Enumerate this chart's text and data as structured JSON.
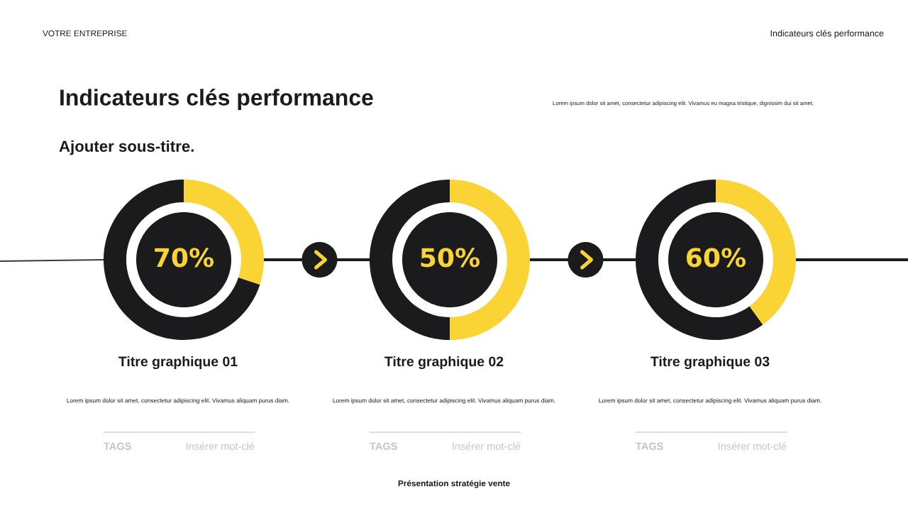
{
  "chart_data": [
    {
      "type": "other",
      "title": "Indicateurs clés performance",
      "subtitle": "Ajouter sous-titre.",
      "annotations": [
        "VOTRE ENTREPRISE",
        "Indicateurs clés performance",
        "Lorem ipsum dolor sit amet, consectetur adipiscing elit. Vivamus eu magna tristique, dignissim dui sit amet.",
        "Présentation stratégie vente"
      ]
    },
    {
      "type": "donut",
      "title": "Titre graphique 01",
      "categories": [
        null,
        null
      ],
      "values": [
        70,
        30
      ],
      "colors": [
        "#1b1a1c",
        "#fad334"
      ],
      "annotations": [
        "70%",
        "Lorem ipsum dolor sit amet, consectetur adipiscing elit. Vivamus aliquam purus diam.",
        "TAGS",
        "Insérer mot-clé"
      ]
    },
    {
      "type": "donut",
      "title": "Titre graphique 02",
      "categories": [
        null,
        null
      ],
      "values": [
        50,
        50
      ],
      "colors": [
        "#1b1a1c",
        "#fad334"
      ],
      "annotations": [
        "50%",
        "Lorem ipsum dolor sit amet, consectetur adipiscing elit. Vivamus aliquam purus diam.",
        "TAGS",
        "Insérer mot-clé"
      ]
    },
    {
      "type": "donut",
      "title": "Titre graphique 03",
      "categories": [
        null,
        null
      ],
      "values": [
        60,
        40
      ],
      "colors": [
        "#1b1a1c",
        "#fad334"
      ],
      "annotations": [
        "60%",
        "Lorem ipsum dolor sit amet, consectetur adipiscing elit. Vivamus aliquam purus diam.",
        "TAGS",
        "Insérer mot-clé"
      ]
    }
  ]
}
